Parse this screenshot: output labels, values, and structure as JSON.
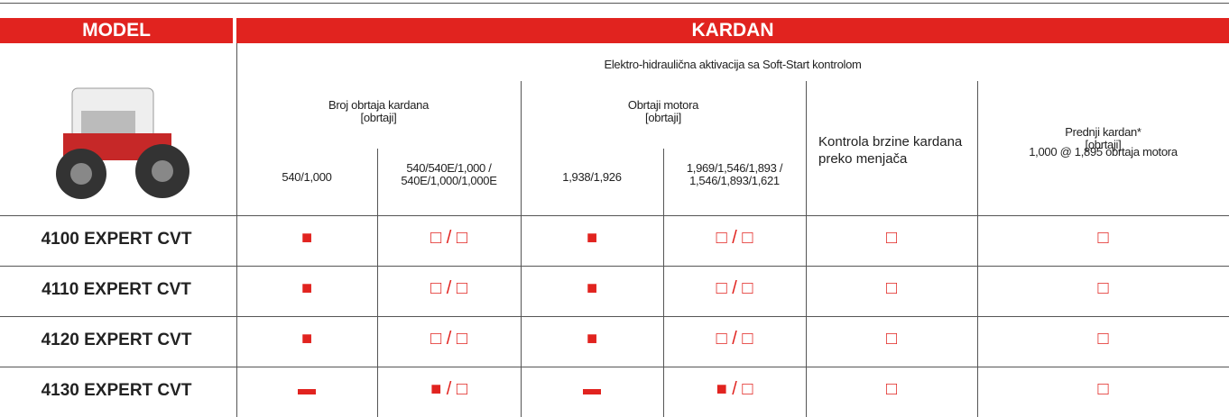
{
  "header": {
    "model": "MODEL",
    "kardan": "KARDAN"
  },
  "subheader": "Elektro-hidraulična aktivacija sa Soft-Start kontrolom",
  "groups": [
    {
      "title": "Broj obrtaja kardana",
      "unit": "[obrtaji]"
    },
    {
      "title": "Obrtaji motora",
      "unit": "[obrtaji]"
    },
    {
      "title": "Prednji kardan*",
      "unit": "[obrtaji]"
    }
  ],
  "columns": [
    "540/1,000",
    "540/540E/1,000 / 540E/1,000/1,000E",
    "1,938/1,926",
    "1,969/1,546/1,893 / 1,546/1,893/1,621",
    "Kontrola brzine kardana preko menjača",
    "1,000 @ 1,895 obrtaja motora"
  ],
  "rows": [
    {
      "model": "4100 EXPERT CVT",
      "cells": [
        "■",
        "□ / □",
        "■",
        "□ / □",
        "□",
        "□"
      ]
    },
    {
      "model": "4110 EXPERT CVT",
      "cells": [
        "■",
        "□ / □",
        "■",
        "□ / □",
        "□",
        "□"
      ]
    },
    {
      "model": "4120 EXPERT CVT",
      "cells": [
        "■",
        "□ / □",
        "■",
        "□ / □",
        "□",
        "□"
      ]
    },
    {
      "model": "4130 EXPERT CVT",
      "cells": [
        "▬",
        "■ / □",
        "▬",
        "■ / □",
        "□",
        "□"
      ]
    }
  ]
}
